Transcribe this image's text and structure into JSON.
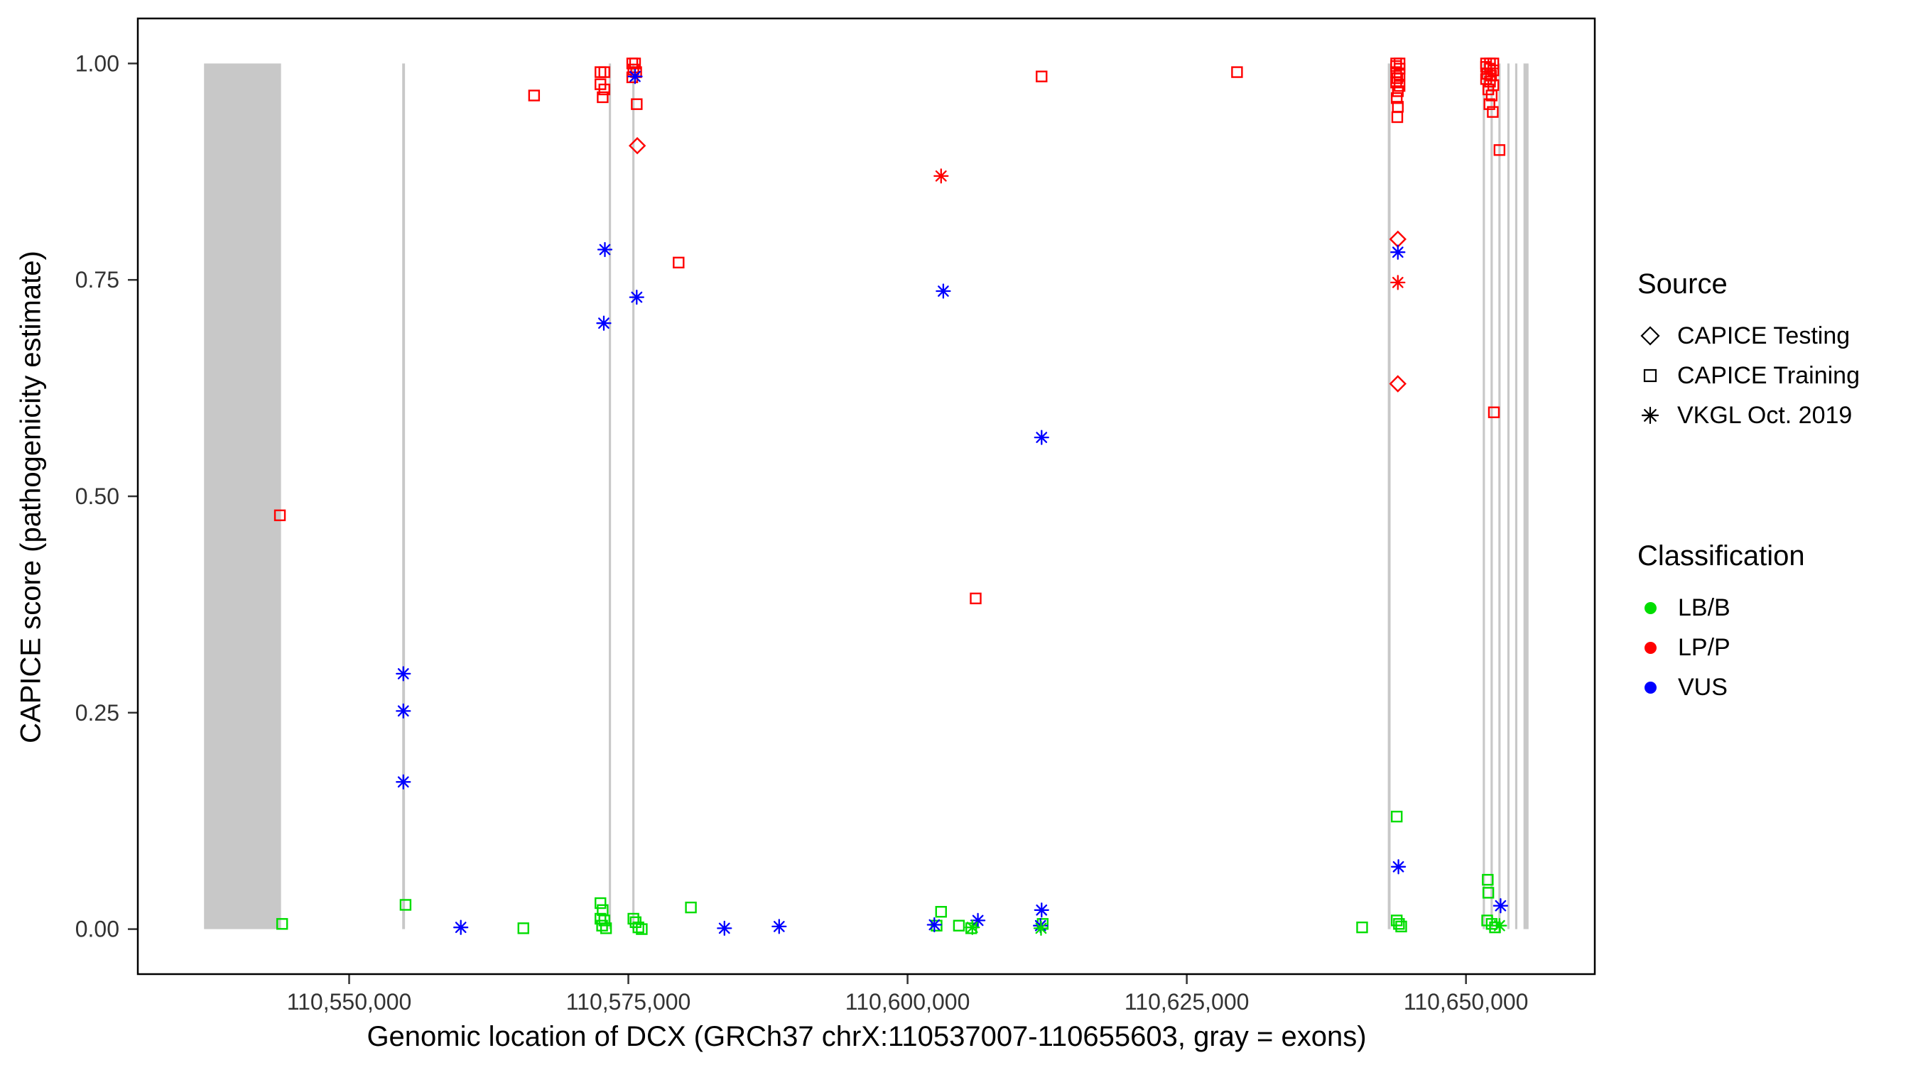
{
  "legend": {
    "source": {
      "title": "Source",
      "items": [
        {
          "label": "CAPICE Testing",
          "shape": "diamond"
        },
        {
          "label": "CAPICE Training",
          "shape": "square"
        },
        {
          "label": "VKGL Oct. 2019",
          "shape": "asterisk"
        }
      ]
    },
    "classification": {
      "title": "Classification",
      "items": [
        {
          "label": "LB/B",
          "color": "#00dd00"
        },
        {
          "label": "LP/P",
          "color": "#ff0000"
        },
        {
          "label": "VUS",
          "color": "#0000ff"
        }
      ]
    }
  },
  "chart_data": {
    "type": "scatter",
    "title": "",
    "xlabel": "Genomic location of DCX (GRCh37 chrX:110537007-110655603, gray = exons)",
    "ylabel": "CAPICE score (pathogenicity estimate)",
    "x_domain": [
      110531077,
      110661533
    ],
    "y_domain": [
      -0.052,
      1.052
    ],
    "grid": "off",
    "legend_position": "right",
    "x_ticks": [
      {
        "value": 110550000,
        "label": "110,550,000"
      },
      {
        "value": 110575000,
        "label": "110,575,000"
      },
      {
        "value": 110600000,
        "label": "110,600,000"
      },
      {
        "value": 110625000,
        "label": "110,625,000"
      },
      {
        "value": 110650000,
        "label": "110,650,000"
      }
    ],
    "y_ticks": [
      {
        "value": 0.0,
        "label": "0.00"
      },
      {
        "value": 0.25,
        "label": "0.25"
      },
      {
        "value": 0.5,
        "label": "0.50"
      },
      {
        "value": 0.75,
        "label": "0.75"
      },
      {
        "value": 1.0,
        "label": "1.00"
      }
    ],
    "exon_color": "#c8c8c8",
    "exons": [
      {
        "start": 110537007,
        "end": 110543900
      },
      {
        "start": 110554750,
        "end": 110555000
      },
      {
        "start": 110573250,
        "end": 110573450
      },
      {
        "start": 110575350,
        "end": 110575550
      },
      {
        "start": 110643000,
        "end": 110643250
      },
      {
        "start": 110651500,
        "end": 110651700
      },
      {
        "start": 110652200,
        "end": 110652400
      },
      {
        "start": 110652900,
        "end": 110653100
      },
      {
        "start": 110653700,
        "end": 110653900
      },
      {
        "start": 110654400,
        "end": 110654600
      },
      {
        "start": 110655150,
        "end": 110655603
      }
    ],
    "series": [
      {
        "name": "CAPICE Training / LP-P",
        "source": "CAPICE Training",
        "classification": "LP/P",
        "shape": "square",
        "color": "#ff0000",
        "points": [
          [
            110543800,
            0.478
          ],
          [
            110566560,
            0.963
          ],
          [
            110572500,
            0.99
          ],
          [
            110572850,
            0.99
          ],
          [
            110572500,
            0.976
          ],
          [
            110572850,
            0.97
          ],
          [
            110572700,
            0.961
          ],
          [
            110575350,
            1.0
          ],
          [
            110575600,
            1.0
          ],
          [
            110575450,
            0.993
          ],
          [
            110575700,
            0.99
          ],
          [
            110575350,
            0.984
          ],
          [
            110575750,
            0.953
          ],
          [
            110579500,
            0.77
          ],
          [
            110606100,
            0.382
          ],
          [
            110612000,
            0.985
          ],
          [
            110629500,
            0.99
          ],
          [
            110643750,
            1.0
          ],
          [
            110644050,
            1.0
          ],
          [
            110643750,
            0.997
          ],
          [
            110644050,
            0.994
          ],
          [
            110643750,
            0.99
          ],
          [
            110644050,
            0.987
          ],
          [
            110643850,
            0.983
          ],
          [
            110643750,
            0.978
          ],
          [
            110644050,
            0.974
          ],
          [
            110643900,
            0.968
          ],
          [
            110643800,
            0.96
          ],
          [
            110643900,
            0.95
          ],
          [
            110643850,
            0.938
          ],
          [
            110651800,
            1.0
          ],
          [
            110652150,
            1.0
          ],
          [
            110652450,
            1.0
          ],
          [
            110651800,
            0.996
          ],
          [
            110652150,
            0.994
          ],
          [
            110652450,
            0.992
          ],
          [
            110651900,
            0.988
          ],
          [
            110652250,
            0.986
          ],
          [
            110651800,
            0.982
          ],
          [
            110652150,
            0.979
          ],
          [
            110652450,
            0.975
          ],
          [
            110652000,
            0.97
          ],
          [
            110652300,
            0.963
          ],
          [
            110652100,
            0.953
          ],
          [
            110652400,
            0.944
          ],
          [
            110653000,
            0.9
          ],
          [
            110652500,
            0.597
          ]
        ]
      },
      {
        "name": "CAPICE Training / LB-B",
        "source": "CAPICE Training",
        "classification": "LB/B",
        "shape": "square",
        "color": "#00dd00",
        "points": [
          [
            110544000,
            0.006
          ],
          [
            110555050,
            0.028
          ],
          [
            110565600,
            0.001
          ],
          [
            110572500,
            0.03
          ],
          [
            110572700,
            0.022
          ],
          [
            110572500,
            0.012
          ],
          [
            110572850,
            0.01
          ],
          [
            110572650,
            0.004
          ],
          [
            110573000,
            0.001
          ],
          [
            110575450,
            0.012
          ],
          [
            110575650,
            0.008
          ],
          [
            110575900,
            0.002
          ],
          [
            110576200,
            0.0
          ],
          [
            110580600,
            0.025
          ],
          [
            110602600,
            0.004
          ],
          [
            110603000,
            0.02
          ],
          [
            110604600,
            0.004
          ],
          [
            110605700,
            0.001
          ],
          [
            110612100,
            0.006
          ],
          [
            110640700,
            0.002
          ],
          [
            110643800,
            0.13
          ],
          [
            110643800,
            0.01
          ],
          [
            110644000,
            0.006
          ],
          [
            110644200,
            0.003
          ],
          [
            110651950,
            0.057
          ],
          [
            110652000,
            0.042
          ],
          [
            110651900,
            0.01
          ],
          [
            110652300,
            0.006
          ],
          [
            110652600,
            0.002
          ]
        ]
      },
      {
        "name": "CAPICE Testing / LP-P",
        "source": "CAPICE Testing",
        "classification": "LP/P",
        "shape": "diamond",
        "color": "#ff0000",
        "points": [
          [
            110575800,
            0.905
          ],
          [
            110643900,
            0.797
          ],
          [
            110643900,
            0.63
          ]
        ]
      },
      {
        "name": "VKGL Oct. 2019 / VUS",
        "source": "VKGL Oct. 2019",
        "classification": "VUS",
        "shape": "asterisk",
        "color": "#0000ff",
        "points": [
          [
            110554850,
            0.295
          ],
          [
            110554850,
            0.252
          ],
          [
            110554850,
            0.17
          ],
          [
            110560000,
            0.002
          ],
          [
            110572900,
            0.785
          ],
          [
            110572800,
            0.7
          ],
          [
            110575600,
            0.985
          ],
          [
            110575750,
            0.73
          ],
          [
            110583600,
            0.001
          ],
          [
            110588500,
            0.003
          ],
          [
            110602400,
            0.005
          ],
          [
            110603200,
            0.737
          ],
          [
            110606300,
            0.01
          ],
          [
            110612000,
            0.568
          ],
          [
            110612000,
            0.022
          ],
          [
            110611900,
            0.004
          ],
          [
            110643900,
            0.782
          ],
          [
            110643950,
            0.072
          ],
          [
            110653100,
            0.027
          ]
        ]
      },
      {
        "name": "VKGL Oct. 2019 / LP-P",
        "source": "VKGL Oct. 2019",
        "classification": "LP/P",
        "shape": "asterisk",
        "color": "#ff0000",
        "points": [
          [
            110603000,
            0.87
          ],
          [
            110643900,
            0.747
          ]
        ]
      },
      {
        "name": "VKGL Oct. 2019 / LB-B",
        "source": "VKGL Oct. 2019",
        "classification": "LB/B",
        "shape": "asterisk",
        "color": "#00dd00",
        "points": [
          [
            110605800,
            0.002
          ],
          [
            110611950,
            0.001
          ],
          [
            110653000,
            0.004
          ]
        ]
      }
    ]
  }
}
